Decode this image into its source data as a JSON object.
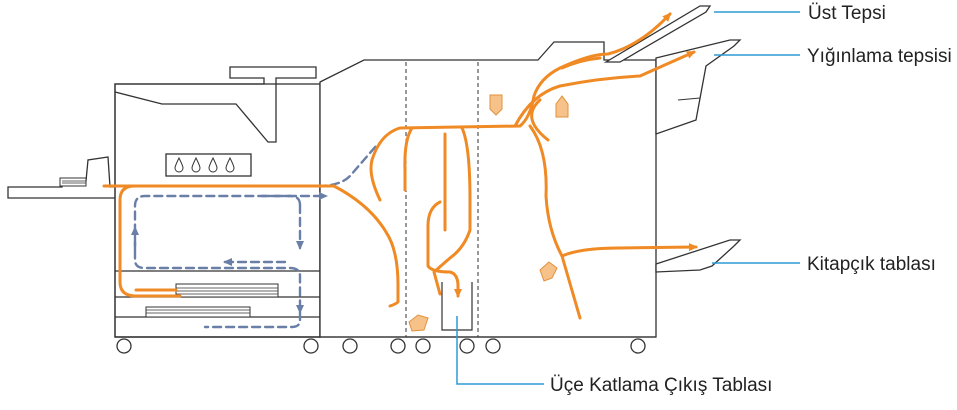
{
  "colors": {
    "paper_path": "#F08A24",
    "duplex_path": "#6A7FA8",
    "leader_line": "#2E9BD6",
    "guide": "#F7C28A",
    "outline": "#333333"
  },
  "labels": {
    "top_tray": "Üst Tepsi",
    "stacking_tray": "Yığınlama tepsisi",
    "booklet_tray": "Kitapçık tablası",
    "trifold_tray": "Üçe Katlama Çıkış Tablası"
  },
  "icons": {
    "ink": "droplet-icon",
    "flow": "arrow-icon"
  }
}
